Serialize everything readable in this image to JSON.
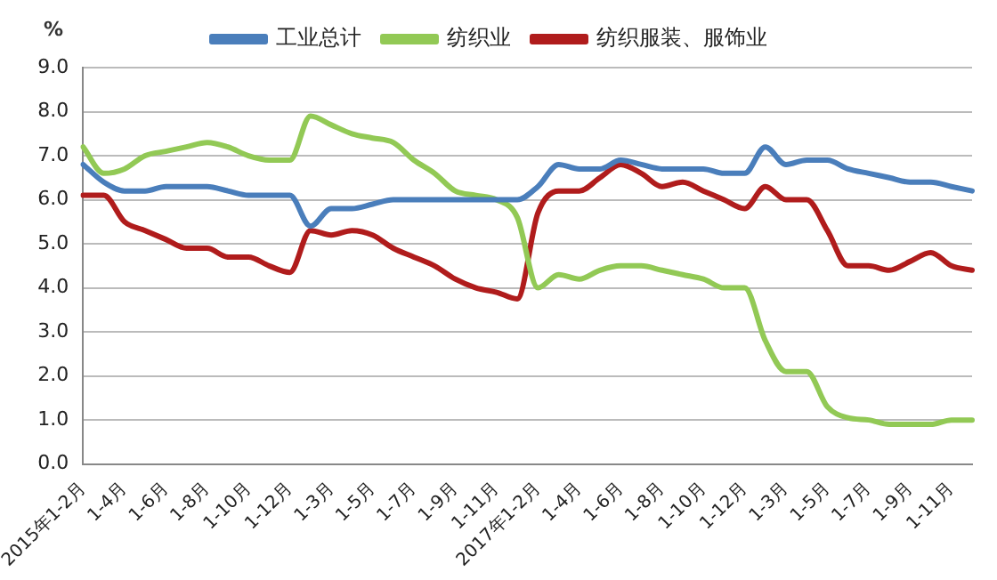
{
  "chart_data": {
    "type": "line",
    "ylabel": "%",
    "categories": [
      "2015年1-2月",
      null,
      "1-4月",
      null,
      "1-6月",
      null,
      "1-8月",
      null,
      "1-10月",
      null,
      "1-12月",
      null,
      "1-3月",
      null,
      "1-5月",
      null,
      "1-7月",
      null,
      "1-9月",
      null,
      "1-11月",
      null,
      "2017年1-2月",
      null,
      "1-4月",
      null,
      "1-6月",
      null,
      "1-8月",
      null,
      "1-10月",
      null,
      "1-12月",
      null,
      "1-3月",
      null,
      "1-5月",
      null,
      "1-7月",
      null,
      "1-9月",
      null,
      "1-11月",
      null
    ],
    "series": [
      {
        "name": "工业总计",
        "color": "#4a7ebb",
        "values": [
          6.8,
          6.4,
          6.2,
          6.2,
          6.3,
          6.3,
          6.3,
          6.2,
          6.1,
          6.1,
          6.1,
          5.4,
          5.8,
          5.8,
          5.9,
          6.0,
          6.0,
          6.0,
          6.0,
          6.0,
          6.0,
          6.0,
          6.3,
          6.8,
          6.7,
          6.7,
          6.9,
          6.8,
          6.7,
          6.7,
          6.7,
          6.6,
          6.6,
          7.2,
          6.8,
          6.9,
          6.9,
          6.7,
          6.6,
          6.5,
          6.4,
          6.4,
          6.3,
          6.2
        ]
      },
      {
        "name": "纺织业",
        "color": "#92c955",
        "values": [
          7.2,
          6.6,
          6.7,
          7.0,
          7.1,
          7.2,
          7.3,
          7.2,
          7.0,
          6.9,
          6.9,
          7.9,
          7.7,
          7.5,
          7.4,
          7.3,
          6.9,
          6.6,
          6.2,
          6.1,
          6.0,
          5.6,
          4.0,
          4.3,
          4.2,
          4.4,
          4.5,
          4.5,
          4.4,
          4.3,
          4.2,
          4.0,
          4.0,
          2.8,
          2.1,
          2.1,
          1.3,
          1.05,
          1.0,
          0.9,
          0.9,
          0.9,
          1.0,
          1.0
        ]
      },
      {
        "name": "纺织服装、服饰业",
        "color": "#b01c1c",
        "values": [
          6.1,
          6.1,
          5.5,
          5.3,
          5.1,
          4.9,
          4.9,
          4.7,
          4.7,
          4.5,
          4.35,
          5.3,
          5.2,
          5.3,
          5.2,
          4.9,
          4.7,
          4.5,
          4.2,
          4.0,
          3.9,
          3.75,
          5.7,
          6.2,
          6.2,
          6.5,
          6.8,
          6.6,
          6.3,
          6.4,
          6.2,
          6.0,
          5.8,
          6.3,
          6.0,
          6.0,
          5.3,
          4.5,
          4.5,
          4.4,
          4.6,
          4.8,
          4.5,
          4.4
        ]
      }
    ],
    "ylim": [
      0,
      9
    ],
    "yticks": [
      {
        "value": 0,
        "label": "0.0"
      },
      {
        "value": 1,
        "label": "1.0"
      },
      {
        "value": 2,
        "label": "2.0"
      },
      {
        "value": 3,
        "label": "3.0"
      },
      {
        "value": 4,
        "label": "4.0"
      },
      {
        "value": 5,
        "label": "5.0"
      },
      {
        "value": 6,
        "label": "6.0"
      },
      {
        "value": 7,
        "label": "7.0"
      },
      {
        "value": 8,
        "label": "8.0"
      },
      {
        "value": 9,
        "label": "9.0"
      }
    ],
    "grid": "y",
    "legend": "top",
    "marker": "none",
    "line_style": "solid"
  }
}
